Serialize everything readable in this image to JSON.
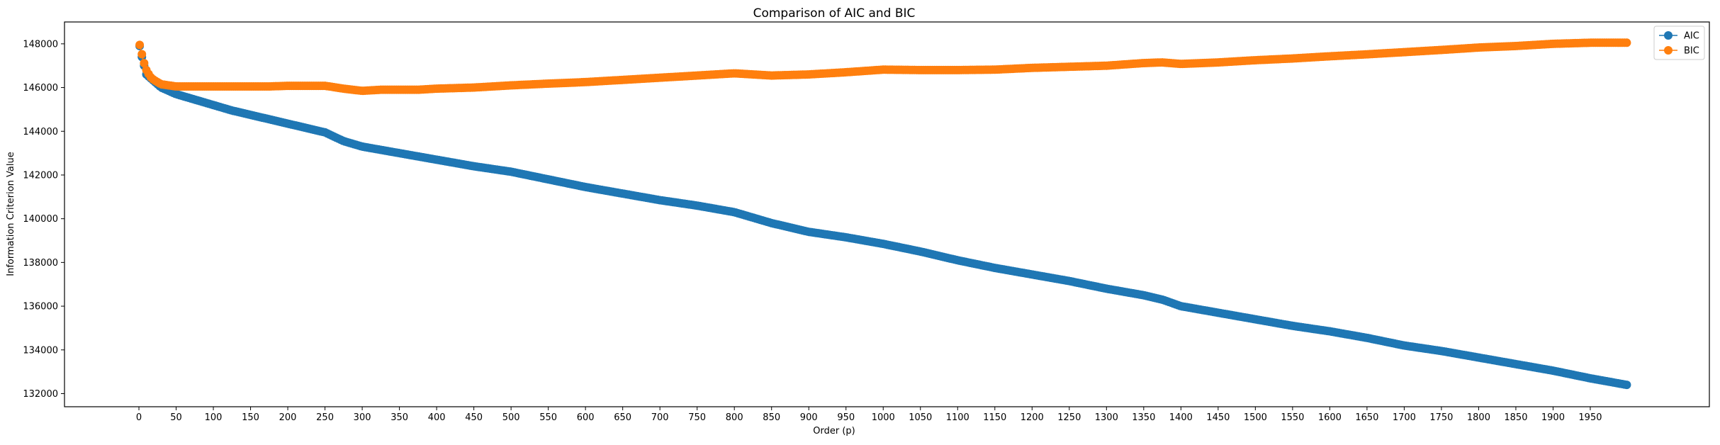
{
  "chart_data": {
    "type": "line",
    "title": "Comparison of AIC and BIC",
    "xlabel": "Order (p)",
    "ylabel": "Information Criterion Value",
    "xlim": [
      -100,
      2110
    ],
    "ylim": [
      131400,
      149000
    ],
    "x_ticks": [
      0,
      50,
      100,
      150,
      200,
      250,
      300,
      350,
      400,
      450,
      500,
      550,
      600,
      650,
      700,
      750,
      800,
      850,
      900,
      950,
      1000,
      1050,
      1100,
      1150,
      1200,
      1250,
      1300,
      1350,
      1400,
      1450,
      1500,
      1550,
      1600,
      1650,
      1700,
      1750,
      1800,
      1850,
      1900,
      1950
    ],
    "y_ticks": [
      132000,
      134000,
      136000,
      138000,
      140000,
      142000,
      144000,
      146000,
      148000
    ],
    "grid": false,
    "legend_placement": "top-right",
    "marker": "circle",
    "x_range": [
      1,
      1999
    ],
    "series": [
      {
        "name": "AIC",
        "color": "#1f77b4",
        "x": [
          1,
          3,
          5,
          8,
          10,
          15,
          20,
          30,
          50,
          75,
          100,
          125,
          150,
          175,
          200,
          225,
          250,
          275,
          300,
          325,
          350,
          375,
          400,
          450,
          500,
          550,
          600,
          650,
          700,
          750,
          800,
          850,
          900,
          950,
          1000,
          1050,
          1100,
          1150,
          1200,
          1250,
          1300,
          1350,
          1375,
          1400,
          1450,
          1500,
          1550,
          1600,
          1650,
          1700,
          1750,
          1800,
          1850,
          1900,
          1950,
          1999
        ],
        "values": [
          147900,
          147600,
          147200,
          146900,
          146600,
          146450,
          146300,
          146000,
          145700,
          145450,
          145200,
          144950,
          144750,
          144550,
          144350,
          144150,
          143950,
          143550,
          143300,
          143150,
          143000,
          142850,
          142700,
          142400,
          142150,
          141800,
          141450,
          141150,
          140850,
          140600,
          140300,
          139800,
          139400,
          139150,
          138850,
          138500,
          138100,
          137750,
          137450,
          137150,
          136800,
          136500,
          136300,
          136000,
          135700,
          135400,
          135100,
          134850,
          134550,
          134200,
          133950,
          133650,
          133350,
          133050,
          132700,
          132400
        ]
      },
      {
        "name": "BIC",
        "color": "#ff7f0e",
        "x": [
          1,
          3,
          5,
          8,
          10,
          15,
          20,
          30,
          50,
          75,
          100,
          125,
          150,
          175,
          200,
          225,
          250,
          275,
          300,
          325,
          350,
          375,
          400,
          450,
          500,
          550,
          600,
          650,
          700,
          750,
          800,
          850,
          900,
          950,
          1000,
          1050,
          1100,
          1150,
          1200,
          1250,
          1300,
          1350,
          1375,
          1400,
          1450,
          1500,
          1550,
          1600,
          1650,
          1700,
          1750,
          1800,
          1850,
          1900,
          1950,
          1999
        ],
        "values": [
          147950,
          147700,
          147350,
          147000,
          146800,
          146500,
          146350,
          146150,
          146050,
          146050,
          146050,
          146050,
          146050,
          146050,
          146080,
          146080,
          146080,
          145950,
          145850,
          145900,
          145900,
          145900,
          145950,
          146000,
          146100,
          146180,
          146250,
          146350,
          146450,
          146550,
          146650,
          146550,
          146600,
          146700,
          146820,
          146800,
          146800,
          146820,
          146900,
          146950,
          147000,
          147120,
          147150,
          147080,
          147150,
          147250,
          147330,
          147430,
          147520,
          147620,
          147720,
          147830,
          147900,
          148000,
          148050,
          148050
        ]
      }
    ]
  }
}
